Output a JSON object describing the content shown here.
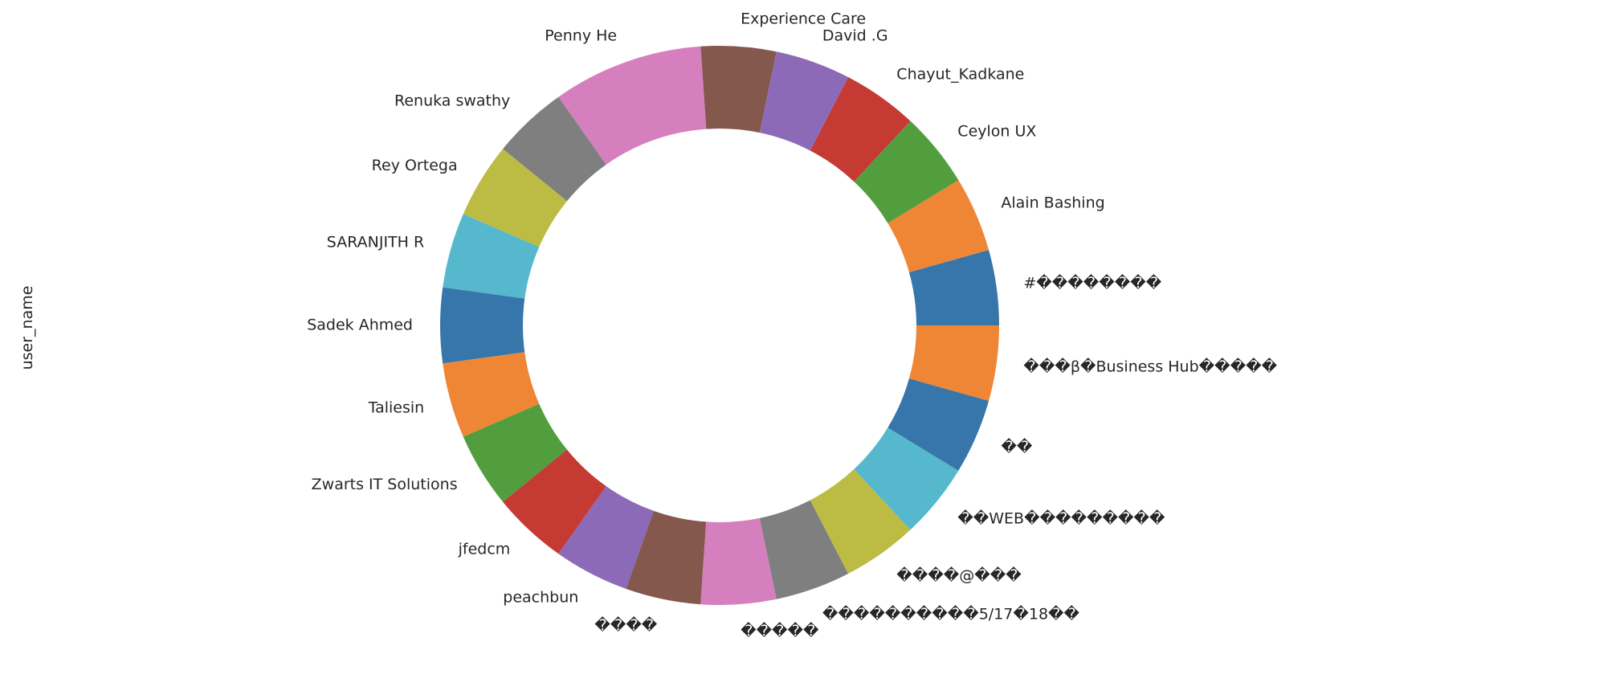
{
  "chart_data": {
    "type": "pie",
    "donut": true,
    "ylabel": "user_name",
    "legend": "none",
    "slices": [
      {
        "label": "#��������",
        "value": 1,
        "color": "#3776ab"
      },
      {
        "label": "Alain Bashing",
        "value": 1,
        "color": "#ef8636"
      },
      {
        "label": "Ceylon UX",
        "value": 1,
        "color": "#529e3e"
      },
      {
        "label": "Chayut_Kadkane",
        "value": 1,
        "color": "#c53a32"
      },
      {
        "label": "David .G",
        "value": 1,
        "color": "#8d6ab8"
      },
      {
        "label": "Experience Care",
        "value": 1,
        "color": "#85584e"
      },
      {
        "label": "Penny He",
        "value": 2,
        "color": "#d57fbe"
      },
      {
        "label": "Renuka swathy",
        "value": 1,
        "color": "#7f7f7f"
      },
      {
        "label": "Rey Ortega",
        "value": 1,
        "color": "#bcbc45"
      },
      {
        "label": "SARANJITH R",
        "value": 1,
        "color": "#56b8cc"
      },
      {
        "label": "Sadek Ahmed",
        "value": 1,
        "color": "#3776ab"
      },
      {
        "label": "Taliesin",
        "value": 1,
        "color": "#ef8636"
      },
      {
        "label": "Zwarts IT Solutions",
        "value": 1,
        "color": "#529e3e"
      },
      {
        "label": "jfedcm",
        "value": 1,
        "color": "#c53a32"
      },
      {
        "label": "peachbun",
        "value": 1,
        "color": "#8d6ab8"
      },
      {
        "label": "����",
        "value": 1,
        "color": "#85584e"
      },
      {
        "label": "�����",
        "value": 1,
        "color": "#d57fbe"
      },
      {
        "label": "����������5/17�18��",
        "value": 1,
        "color": "#7f7f7f"
      },
      {
        "label": "����@���",
        "value": 1,
        "color": "#bcbc45"
      },
      {
        "label": "��WEB���������",
        "value": 1,
        "color": "#56b8cc"
      },
      {
        "label": "��",
        "value": 1,
        "color": "#3776ab"
      },
      {
        "label": "���β�Business Hub�����",
        "value": 1,
        "color": "#ef8636"
      }
    ]
  }
}
